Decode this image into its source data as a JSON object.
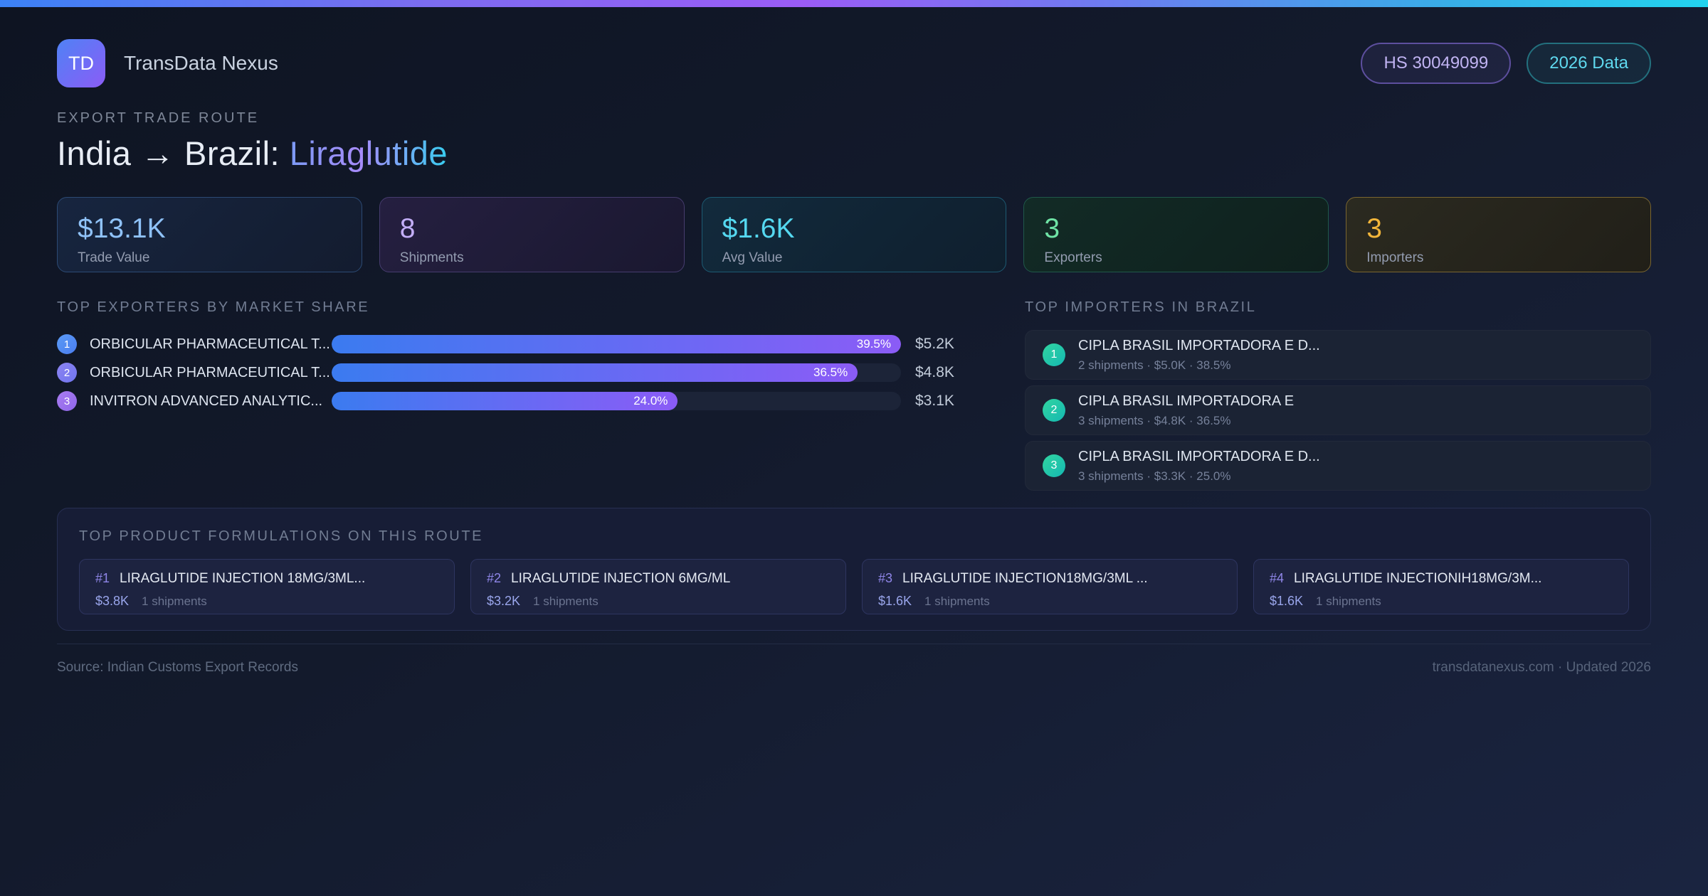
{
  "colors": {
    "accent_bar_gradient": [
      "#3b82f6",
      "#9b5cf6",
      "#22d3ee"
    ],
    "background": "#131a2c",
    "bar_gradient": [
      "#3b7bf0",
      "#8b5cf6"
    ],
    "importer_badge": "#2bc9a6",
    "stat_colors": [
      "#8fc2f8",
      "#c3aef8",
      "#55d8f0",
      "#6fe3a5",
      "#f2b53a"
    ]
  },
  "header": {
    "logo_text": "TD",
    "app_name": "TransData Nexus",
    "badges": [
      {
        "label": "HS 30049099"
      },
      {
        "label": "2026 Data"
      }
    ]
  },
  "hero": {
    "eyebrow": "EXPORT TRADE ROUTE",
    "title_main": "India → Brazil:",
    "title_accent": "Liraglutide"
  },
  "stats": [
    {
      "value": "$13.1K",
      "label": "Trade Value"
    },
    {
      "value": "8",
      "label": "Shipments"
    },
    {
      "value": "$1.6K",
      "label": "Avg Value"
    },
    {
      "value": "3",
      "label": "Exporters"
    },
    {
      "value": "3",
      "label": "Importers"
    }
  ],
  "exporters": {
    "heading": "TOP EXPORTERS BY MARKET SHARE",
    "items": [
      {
        "rank": "1",
        "name": "ORBICULAR PHARMACEUTICAL T...",
        "share_label": "39.5%",
        "share_pct": 39.5,
        "bar_pct": 100,
        "value": "$5.2K"
      },
      {
        "rank": "2",
        "name": "ORBICULAR PHARMACEUTICAL T...",
        "share_label": "36.5%",
        "share_pct": 36.5,
        "bar_pct": 92.4,
        "value": "$4.8K"
      },
      {
        "rank": "3",
        "name": "INVITRON ADVANCED ANALYTIC...",
        "share_label": "24.0%",
        "share_pct": 24.0,
        "bar_pct": 60.8,
        "value": "$3.1K"
      }
    ]
  },
  "importers": {
    "heading": "TOP IMPORTERS IN BRAZIL",
    "items": [
      {
        "rank": "1",
        "name": "CIPLA BRASIL IMPORTADORA E D...",
        "meta": "2 shipments · $5.0K · 38.5%"
      },
      {
        "rank": "2",
        "name": "CIPLA BRASIL IMPORTADORA E",
        "meta": "3 shipments · $4.8K · 36.5%"
      },
      {
        "rank": "3",
        "name": "CIPLA BRASIL IMPORTADORA E D...",
        "meta": "3 shipments · $3.3K · 25.0%"
      }
    ]
  },
  "formulations": {
    "heading": "TOP PRODUCT FORMULATIONS ON THIS ROUTE",
    "items": [
      {
        "rank": "#1",
        "name": "LIRAGLUTIDE INJECTION 18MG/3ML...",
        "value": "$3.8K",
        "shipments": "1 shipments"
      },
      {
        "rank": "#2",
        "name": "LIRAGLUTIDE INJECTION 6MG/ML",
        "value": "$3.2K",
        "shipments": "1 shipments"
      },
      {
        "rank": "#3",
        "name": "LIRAGLUTIDE INJECTION18MG/3ML ...",
        "value": "$1.6K",
        "shipments": "1 shipments"
      },
      {
        "rank": "#4",
        "name": "LIRAGLUTIDE INJECTIONIH18MG/3M...",
        "value": "$1.6K",
        "shipments": "1 shipments"
      }
    ]
  },
  "footer": {
    "source": "Source: Indian Customs Export Records",
    "site": "transdatanexus.com · Updated 2026"
  }
}
